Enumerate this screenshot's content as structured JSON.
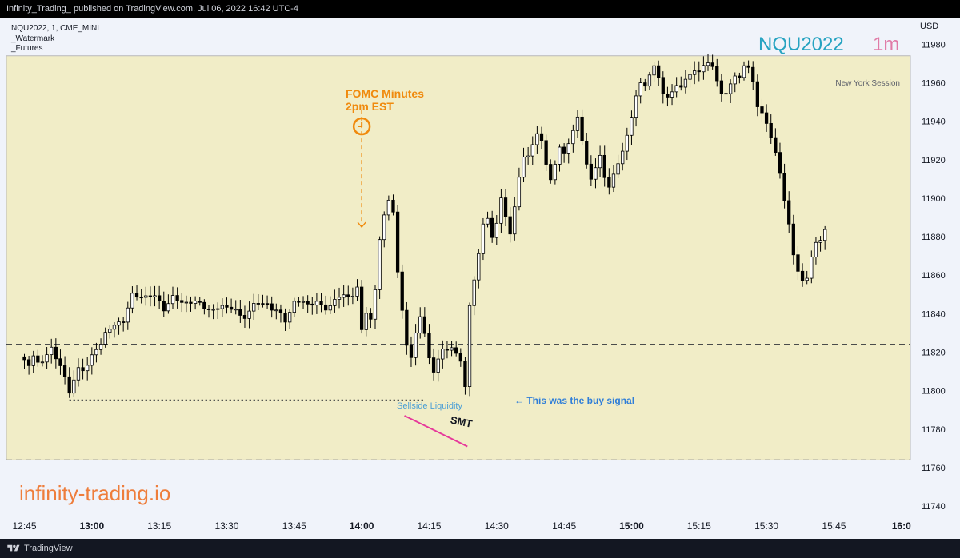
{
  "publish_bar": {
    "text": "Infinity_Trading_ published on TradingView.com, Jul 06, 2022 16:42 UTC-4"
  },
  "footer": {
    "brand": "TradingView",
    "logo_icon": "tradingview-logo-icon"
  },
  "legend": {
    "symbol_line": "NQU2022, 1, CME_MINI",
    "line2": "_Watermark",
    "line3": "_Futures"
  },
  "watermark": {
    "symbol": "NQU2022",
    "interval": "1m",
    "symbol_color": "#26a3c1",
    "interval_color": "#e07aa6"
  },
  "branding": {
    "text": "infinity-trading.io",
    "color": "#ee7d3b"
  },
  "colors": {
    "session_fill": "#f1edc7",
    "candle": "#000000",
    "fomc": "#f08a0d",
    "smt_line": "#e6399b",
    "buy_signal": "#2f7ed8",
    "sellside": "#4c9fd6"
  },
  "annotations": {
    "fomc_line1": "FOMC Minutes",
    "fomc_line2": "2pm EST",
    "fomc_icon": "clock-icon",
    "new_york_session": "New York Session",
    "sellside_liquidity": "Sellside Liquidity",
    "smt": "SMT",
    "buy_signal": "← This was the buy signal"
  },
  "chart_data": {
    "type": "candlestick",
    "y_axis_label": "USD",
    "ylim": [
      11733,
      11993
    ],
    "y_ticks": [
      11740,
      11760,
      11780,
      11800,
      11820,
      11840,
      11860,
      11880,
      11900,
      11920,
      11940,
      11960,
      11980
    ],
    "x_ticks": [
      {
        "label": "12:45",
        "minute": 0,
        "bold": false
      },
      {
        "label": "13:00",
        "minute": 15,
        "bold": true
      },
      {
        "label": "13:15",
        "minute": 30,
        "bold": false
      },
      {
        "label": "13:30",
        "minute": 45,
        "bold": false
      },
      {
        "label": "13:45",
        "minute": 60,
        "bold": false
      },
      {
        "label": "14:00",
        "minute": 75,
        "bold": true
      },
      {
        "label": "14:15",
        "minute": 90,
        "bold": false
      },
      {
        "label": "14:30",
        "minute": 105,
        "bold": false
      },
      {
        "label": "14:45",
        "minute": 120,
        "bold": false
      },
      {
        "label": "15:00",
        "minute": 135,
        "bold": true
      },
      {
        "label": "15:15",
        "minute": 150,
        "bold": false
      },
      {
        "label": "15:30",
        "minute": 165,
        "bold": false
      },
      {
        "label": "15:45",
        "minute": 180,
        "bold": false
      },
      {
        "label": "16:0",
        "minute": 195,
        "bold": true
      }
    ],
    "x_range": [
      -4,
      197
    ],
    "session": {
      "start_minute": -4,
      "end_minute": 197,
      "high": 11974,
      "low": 11764
    },
    "levels": {
      "dashed_high": 11824,
      "dashed_low": 11764,
      "sellside_low": 11795,
      "sellside_start_minute": 10,
      "sellside_end_minute": 89
    },
    "fomc_minute": 75,
    "fomc_arrow_top": 11946,
    "fomc_arrow_bottom": 11885,
    "smt_line": {
      "x1": 84.5,
      "y1": 11787,
      "x2": 98.5,
      "y2": 11771
    },
    "anchor_points": [
      [
        0,
        11815
      ],
      [
        1,
        11812
      ],
      [
        2,
        11818
      ],
      [
        3,
        11815
      ],
      [
        6,
        11820
      ],
      [
        8,
        11815
      ],
      [
        10,
        11798
      ],
      [
        11,
        11805
      ],
      [
        12,
        11812
      ],
      [
        14,
        11813
      ],
      [
        15,
        11816
      ],
      [
        16,
        11822
      ],
      [
        18,
        11830
      ],
      [
        20,
        11833
      ],
      [
        22,
        11838
      ],
      [
        24,
        11848
      ],
      [
        26,
        11850
      ],
      [
        29,
        11848
      ],
      [
        31,
        11844
      ],
      [
        33,
        11847
      ],
      [
        35,
        11847
      ],
      [
        38,
        11845
      ],
      [
        40,
        11845
      ],
      [
        42,
        11840
      ],
      [
        44,
        11845
      ],
      [
        46,
        11843
      ],
      [
        48,
        11838
      ],
      [
        50,
        11842
      ],
      [
        52,
        11845
      ],
      [
        54,
        11846
      ],
      [
        56,
        11840
      ],
      [
        58,
        11838
      ],
      [
        60,
        11845
      ],
      [
        62,
        11846
      ],
      [
        64,
        11846
      ],
      [
        66,
        11843
      ],
      [
        68,
        11845
      ],
      [
        70,
        11848
      ],
      [
        72,
        11850
      ],
      [
        74,
        11852
      ],
      [
        75,
        11830
      ],
      [
        76,
        11842
      ],
      [
        77,
        11838
      ],
      [
        78,
        11852
      ],
      [
        79,
        11878
      ],
      [
        80,
        11890
      ],
      [
        81,
        11900
      ],
      [
        82,
        11895
      ],
      [
        83,
        11860
      ],
      [
        84,
        11840
      ],
      [
        85,
        11825
      ],
      [
        86,
        11818
      ],
      [
        87,
        11830
      ],
      [
        88,
        11838
      ],
      [
        89,
        11828
      ],
      [
        90,
        11818
      ],
      [
        91,
        11812
      ],
      [
        92,
        11815
      ],
      [
        93,
        11820
      ],
      [
        94,
        11822
      ],
      [
        95,
        11823
      ],
      [
        96,
        11820
      ],
      [
        97,
        11815
      ],
      [
        98,
        11800
      ],
      [
        99,
        11845
      ],
      [
        100,
        11860
      ],
      [
        101,
        11870
      ],
      [
        102,
        11885
      ],
      [
        103,
        11890
      ],
      [
        104,
        11880
      ],
      [
        105,
        11888
      ],
      [
        106,
        11900
      ],
      [
        107,
        11888
      ],
      [
        108,
        11882
      ],
      [
        109,
        11898
      ],
      [
        110,
        11910
      ],
      [
        111,
        11920
      ],
      [
        112,
        11922
      ],
      [
        113,
        11928
      ],
      [
        114,
        11935
      ],
      [
        115,
        11930
      ],
      [
        116,
        11915
      ],
      [
        117,
        11910
      ],
      [
        118,
        11920
      ],
      [
        119,
        11926
      ],
      [
        120,
        11922
      ],
      [
        121,
        11928
      ],
      [
        122,
        11935
      ],
      [
        123,
        11944
      ],
      [
        124,
        11930
      ],
      [
        125,
        11915
      ],
      [
        126,
        11910
      ],
      [
        127,
        11918
      ],
      [
        128,
        11922
      ],
      [
        129,
        11910
      ],
      [
        130,
        11905
      ],
      [
        131,
        11912
      ],
      [
        132,
        11920
      ],
      [
        133,
        11925
      ],
      [
        134,
        11930
      ],
      [
        135,
        11942
      ],
      [
        136,
        11955
      ],
      [
        137,
        11960
      ],
      [
        138,
        11958
      ],
      [
        139,
        11963
      ],
      [
        140,
        11968
      ],
      [
        141,
        11965
      ],
      [
        142,
        11955
      ],
      [
        143,
        11950
      ],
      [
        144,
        11955
      ],
      [
        145,
        11960
      ],
      [
        146,
        11958
      ],
      [
        147,
        11962
      ],
      [
        148,
        11963
      ],
      [
        149,
        11965
      ],
      [
        150,
        11968
      ],
      [
        151,
        11970
      ],
      [
        152,
        11968
      ],
      [
        153,
        11968
      ],
      [
        154,
        11962
      ],
      [
        155,
        11955
      ],
      [
        156,
        11955
      ],
      [
        157,
        11958
      ],
      [
        158,
        11962
      ],
      [
        159,
        11965
      ],
      [
        160,
        11970
      ],
      [
        161,
        11966
      ],
      [
        162,
        11960
      ],
      [
        163,
        11948
      ],
      [
        164,
        11945
      ],
      [
        165,
        11940
      ],
      [
        166,
        11930
      ],
      [
        167,
        11922
      ],
      [
        168,
        11915
      ],
      [
        169,
        11900
      ],
      [
        170,
        11885
      ],
      [
        171,
        11870
      ],
      [
        172,
        11862
      ],
      [
        173,
        11858
      ],
      [
        174,
        11860
      ],
      [
        175,
        11868
      ],
      [
        176,
        11875
      ],
      [
        177,
        11880
      ],
      [
        178,
        11885
      ]
    ]
  }
}
